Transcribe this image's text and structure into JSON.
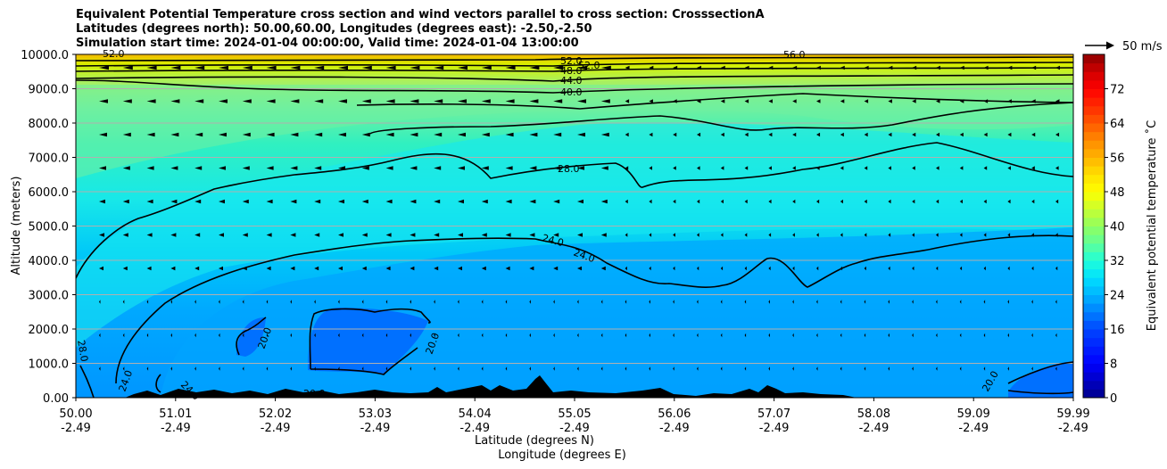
{
  "chart_data": {
    "type": "contourf",
    "title_lines": [
      "Equivalent Potential Temperature cross section and wind vectors parallel to cross section: CrosssectionA",
      "Latitudes (degrees north): 50.00,60.00, Longitudes (degrees east): -2.50,-2.50",
      "Simulation start time: 2024-01-04 00:00:00, Valid time: 2024-01-04 13:00:00"
    ],
    "xlabel_lines": [
      "Latitude (degrees N)",
      "Longitude (degrees E)"
    ],
    "ylabel": "Altitude (meters)",
    "ylim": [
      0,
      10000
    ],
    "x_ticks": [
      {
        "lat": "50.00",
        "lon": "-2.49"
      },
      {
        "lat": "51.01",
        "lon": "-2.49"
      },
      {
        "lat": "52.02",
        "lon": "-2.49"
      },
      {
        "lat": "53.03",
        "lon": "-2.49"
      },
      {
        "lat": "54.04",
        "lon": "-2.49"
      },
      {
        "lat": "55.05",
        "lon": "-2.49"
      },
      {
        "lat": "56.06",
        "lon": "-2.49"
      },
      {
        "lat": "57.07",
        "lon": "-2.49"
      },
      {
        "lat": "58.08",
        "lon": "-2.49"
      },
      {
        "lat": "59.09",
        "lon": "-2.49"
      },
      {
        "lat": "59.99",
        "lon": "-2.49"
      }
    ],
    "y_ticks": [
      "0.00",
      "1000.0",
      "2000.0",
      "3000.0",
      "4000.0",
      "5000.0",
      "6000.0",
      "7000.0",
      "8000.0",
      "9000.0",
      "10000.0"
    ],
    "grid": "horizontal",
    "colorbar": {
      "label": "Equivalent potential temperature ˚C",
      "range": [
        0,
        80
      ],
      "ticks": [
        "0",
        "8",
        "16",
        "24",
        "32",
        "40",
        "48",
        "56",
        "64",
        "72"
      ]
    },
    "quiver_key": {
      "label": "50 m/s"
    },
    "contour_labels": [
      "28.0",
      "24.0",
      "24.0",
      "24.0",
      "20.0",
      "20.0",
      "20.0",
      "20.0",
      "28.0",
      "40.0",
      "44.0",
      "48.0",
      "52.0",
      "52.0",
      "56.0",
      "52.0",
      "24.0",
      "24.0",
      "20.0"
    ]
  }
}
